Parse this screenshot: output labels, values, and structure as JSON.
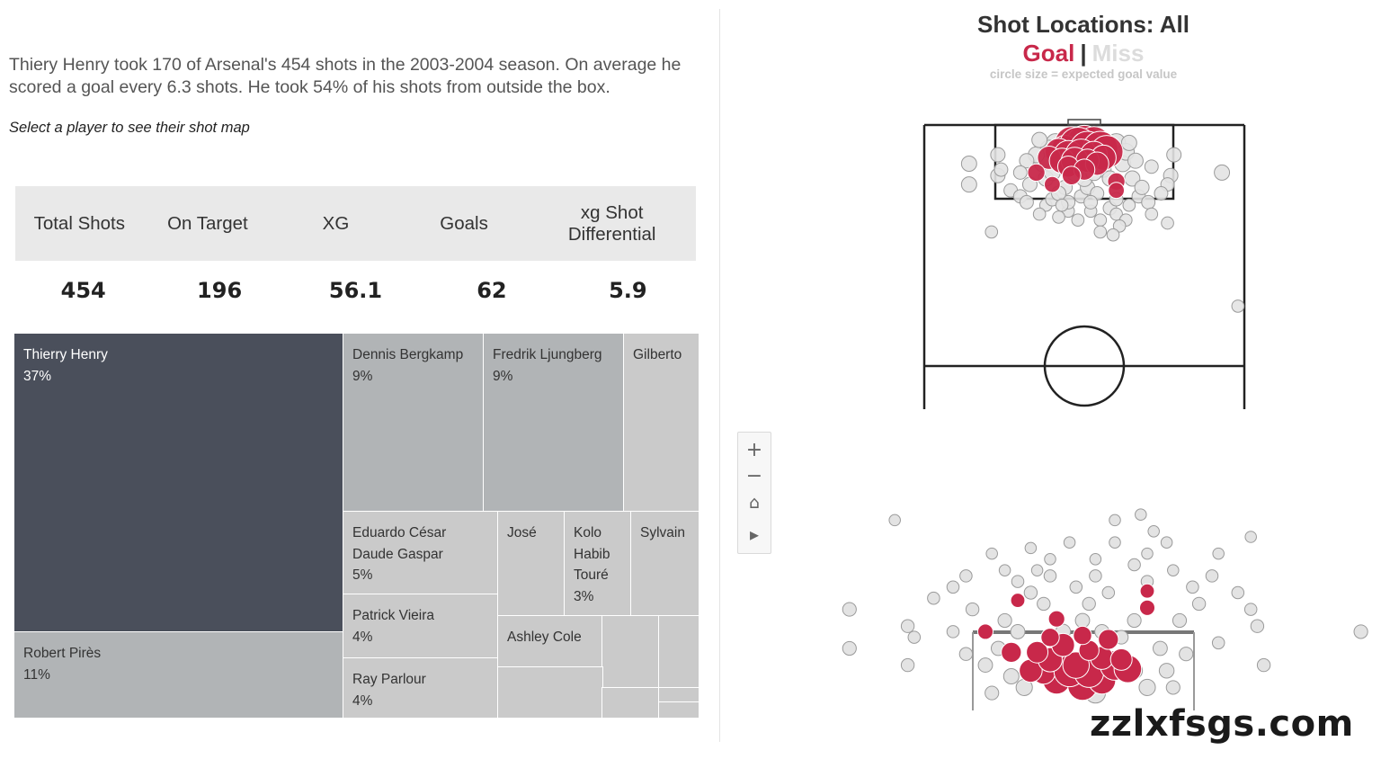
{
  "intro": {
    "text": "Thiery Henry took 170 of Arsenal's 454 shots in the 2003-2004 season. On average he scored a goal every 6.3 shots. He took 54% of his shots from outside the box.",
    "select_hint": "Select a player to see their shot map"
  },
  "kpis": {
    "headers": [
      "Total Shots",
      "On Target",
      "XG",
      "Goals",
      "xg Shot Differential"
    ],
    "values": [
      "454",
      "196",
      "56.1",
      "62",
      "5.9"
    ]
  },
  "colors": {
    "goal": "#c8284a",
    "miss": "#e3e3e3",
    "miss_stroke": "#9a9a9a",
    "treemap_selected": "#4a4f5b",
    "treemap_mid": "#b1b4b6",
    "treemap_light": "#cacaca"
  },
  "chart_data": [
    {
      "type": "treemap",
      "title": "",
      "measure": "share of shots",
      "items": [
        {
          "name": "Thierry Henry",
          "share": 37,
          "label": "Thierry Henry\n37%",
          "selected": true
        },
        {
          "name": "Robert Pirès",
          "share": 11,
          "label": "Robert Pirès\n11%"
        },
        {
          "name": "Dennis Bergkamp",
          "share": 9,
          "label": "Dennis Bergkamp\n9%"
        },
        {
          "name": "Fredrik Ljungberg",
          "share": 9,
          "label": "Fredrik Ljungberg\n9%"
        },
        {
          "name": "Gilberto",
          "share": 5,
          "label": "Gilberto"
        },
        {
          "name": "Eduardo César Daude Gaspar",
          "share": 5,
          "label": "Eduardo César\nDaude Gaspar\n5%"
        },
        {
          "name": "Patrick Vieira",
          "share": 4,
          "label": "Patrick Vieira\n4%"
        },
        {
          "name": "Ray Parlour",
          "share": 4,
          "label": "Ray Parlour\n4%"
        },
        {
          "name": "José",
          "share": 3,
          "label": "José"
        },
        {
          "name": "Kolo Habib Touré",
          "share": 3,
          "label": "Kolo\nHabib\nTouré\n3%"
        },
        {
          "name": "Sylvain",
          "share": 3,
          "label": "Sylvain"
        },
        {
          "name": "Ashley Cole",
          "share": 2,
          "label": "Ashley Cole"
        },
        {
          "name": "Other 1",
          "share": 1,
          "label": ""
        },
        {
          "name": "Other 2",
          "share": 1,
          "label": ""
        },
        {
          "name": "Other 3",
          "share": 1,
          "label": ""
        },
        {
          "name": "Other 4",
          "share": 0.5,
          "label": ""
        },
        {
          "name": "Other 5",
          "share": 0.5,
          "label": ""
        },
        {
          "name": "Other 6",
          "share": 0.5,
          "label": ""
        },
        {
          "name": "Other 7",
          "share": 0.5,
          "label": ""
        }
      ]
    },
    {
      "type": "scatter",
      "title": "Shot Locations: All",
      "subtitle": "circle size = expected goal value",
      "legend": [
        "Goal",
        "Miss"
      ],
      "coordinate_note": "x: lateral pitch position (0 = left touchline, 100 = right touchline); y: distance from goal line (0 = goal line)",
      "series": [
        {
          "name": "Goal",
          "points": [
            {
              "x": 46,
              "y": 3,
              "xg": 0.5
            },
            {
              "x": 50,
              "y": 3,
              "xg": 0.6
            },
            {
              "x": 53,
              "y": 3,
              "xg": 0.5
            },
            {
              "x": 44,
              "y": 5,
              "xg": 0.3
            },
            {
              "x": 48,
              "y": 4,
              "xg": 0.7
            },
            {
              "x": 51,
              "y": 5,
              "xg": 0.6
            },
            {
              "x": 55,
              "y": 5,
              "xg": 0.6
            },
            {
              "x": 57,
              "y": 6,
              "xg": 0.5
            },
            {
              "x": 42,
              "y": 6,
              "xg": 0.3
            },
            {
              "x": 45,
              "y": 7,
              "xg": 0.35
            },
            {
              "x": 49,
              "y": 7,
              "xg": 0.45
            },
            {
              "x": 53,
              "y": 7,
              "xg": 0.3
            },
            {
              "x": 56,
              "y": 8,
              "xg": 0.25
            },
            {
              "x": 39,
              "y": 8,
              "xg": 0.2
            },
            {
              "x": 43,
              "y": 9,
              "xg": 0.25
            },
            {
              "x": 47,
              "y": 9,
              "xg": 0.3
            },
            {
              "x": 51,
              "y": 9,
              "xg": 0.2
            },
            {
              "x": 54,
              "y": 10,
              "xg": 0.2
            },
            {
              "x": 45,
              "y": 11,
              "xg": 0.15
            },
            {
              "x": 50,
              "y": 12,
              "xg": 0.15
            },
            {
              "x": 35,
              "y": 13,
              "xg": 0.08
            },
            {
              "x": 46,
              "y": 14,
              "xg": 0.1
            },
            {
              "x": 60,
              "y": 16,
              "xg": 0.08
            },
            {
              "x": 40,
              "y": 17,
              "xg": 0.06
            },
            {
              "x": 60,
              "y": 19,
              "xg": 0.06
            }
          ]
        },
        {
          "name": "Miss",
          "points": [
            {
              "x": 14,
              "y": 10,
              "xg": 0.05
            },
            {
              "x": 14,
              "y": 17,
              "xg": 0.05
            },
            {
              "x": 93,
              "y": 13,
              "xg": 0.05
            },
            {
              "x": 23,
              "y": 7,
              "xg": 0.04
            },
            {
              "x": 78,
              "y": 7,
              "xg": 0.04
            },
            {
              "x": 23,
              "y": 14,
              "xg": 0.04
            },
            {
              "x": 77,
              "y": 14,
              "xg": 0.04
            },
            {
              "x": 24,
              "y": 12,
              "xg": 0.03
            },
            {
              "x": 76,
              "y": 17,
              "xg": 0.03
            },
            {
              "x": 27,
              "y": 19,
              "xg": 0.03
            },
            {
              "x": 74,
              "y": 20,
              "xg": 0.03
            },
            {
              "x": 30,
              "y": 21,
              "xg": 0.03
            },
            {
              "x": 67,
              "y": 21,
              "xg": 0.03
            },
            {
              "x": 32,
              "y": 23,
              "xg": 0.03
            },
            {
              "x": 70,
              "y": 23,
              "xg": 0.03
            },
            {
              "x": 38,
              "y": 24,
              "xg": 0.02
            },
            {
              "x": 58,
              "y": 25,
              "xg": 0.03
            },
            {
              "x": 45,
              "y": 26,
              "xg": 0.02
            },
            {
              "x": 52,
              "y": 26,
              "xg": 0.02
            },
            {
              "x": 60,
              "y": 27,
              "xg": 0.02
            },
            {
              "x": 42,
              "y": 28,
              "xg": 0.02
            },
            {
              "x": 48,
              "y": 29,
              "xg": 0.02
            },
            {
              "x": 55,
              "y": 29,
              "xg": 0.02
            },
            {
              "x": 63,
              "y": 29,
              "xg": 0.02
            },
            {
              "x": 36,
              "y": 27,
              "xg": 0.02
            },
            {
              "x": 71,
              "y": 27,
              "xg": 0.02
            },
            {
              "x": 21,
              "y": 33,
              "xg": 0.02
            },
            {
              "x": 76,
              "y": 30,
              "xg": 0.02
            },
            {
              "x": 61,
              "y": 31,
              "xg": 0.02
            },
            {
              "x": 59,
              "y": 34,
              "xg": 0.02
            },
            {
              "x": 55,
              "y": 33,
              "xg": 0.02
            },
            {
              "x": 40,
              "y": 22,
              "xg": 0.03
            },
            {
              "x": 49,
              "y": 21,
              "xg": 0.03
            },
            {
              "x": 51,
              "y": 18,
              "xg": 0.04
            },
            {
              "x": 56,
              "y": 12,
              "xg": 0.05
            },
            {
              "x": 62,
              "y": 10,
              "xg": 0.06
            },
            {
              "x": 37,
              "y": 10,
              "xg": 0.06
            },
            {
              "x": 38,
              "y": 15,
              "xg": 0.05
            },
            {
              "x": 65,
              "y": 15,
              "xg": 0.05
            },
            {
              "x": 33,
              "y": 17,
              "xg": 0.04
            },
            {
              "x": 68,
              "y": 18,
              "xg": 0.04
            },
            {
              "x": 44,
              "y": 18,
              "xg": 0.04
            },
            {
              "x": 54,
              "y": 20,
              "xg": 0.03
            },
            {
              "x": 60,
              "y": 22,
              "xg": 0.03
            },
            {
              "x": 45,
              "y": 23,
              "xg": 0.03
            },
            {
              "x": 52,
              "y": 23,
              "xg": 0.03
            },
            {
              "x": 40,
              "y": 13,
              "xg": 0.06
            },
            {
              "x": 58,
              "y": 6,
              "xg": 0.1
            },
            {
              "x": 60,
              "y": 3,
              "xg": 0.1
            },
            {
              "x": 41,
              "y": 3,
              "xg": 0.1
            },
            {
              "x": 39,
              "y": 5,
              "xg": 0.08
            },
            {
              "x": 63,
              "y": 6,
              "xg": 0.07
            },
            {
              "x": 66,
              "y": 9,
              "xg": 0.05
            },
            {
              "x": 35,
              "y": 7,
              "xg": 0.06
            },
            {
              "x": 32,
              "y": 9,
              "xg": 0.04
            },
            {
              "x": 58,
              "y": 15,
              "xg": 0.05
            },
            {
              "x": 42,
              "y": 20,
              "xg": 0.04
            },
            {
              "x": 50,
              "y": 15,
              "xg": 0.06
            },
            {
              "x": 53,
              "y": 13,
              "xg": 0.06
            },
            {
              "x": 47,
              "y": 13,
              "xg": 0.07
            },
            {
              "x": 43,
              "y": 24,
              "xg": 0.02
            },
            {
              "x": 64,
              "y": 24,
              "xg": 0.02
            },
            {
              "x": 30,
              "y": 13,
              "xg": 0.03
            },
            {
              "x": 71,
              "y": 11,
              "xg": 0.03
            },
            {
              "x": 47,
              "y": 5,
              "xg": 0.2
            },
            {
              "x": 52,
              "y": 2,
              "xg": 0.2
            },
            {
              "x": 36,
              "y": 2,
              "xg": 0.05
            },
            {
              "x": 64,
              "y": 3,
              "xg": 0.05
            },
            {
              "x": 98,
              "y": 58,
              "xg": 0.02
            }
          ]
        }
      ]
    }
  ],
  "map_header": {
    "title": "Shot Locations: All",
    "goal": "Goal",
    "separator": "|",
    "miss": "Miss",
    "subtitle": "circle size = expected goal value"
  },
  "map_controls": [
    {
      "icon": "zoom-in-icon",
      "glyph": "+"
    },
    {
      "icon": "zoom-out-icon",
      "glyph": "−"
    },
    {
      "icon": "home-icon",
      "glyph": "⌂"
    },
    {
      "icon": "expand-arrow-icon",
      "glyph": "▸"
    }
  ],
  "watermark": "zzlxfsgs.com"
}
